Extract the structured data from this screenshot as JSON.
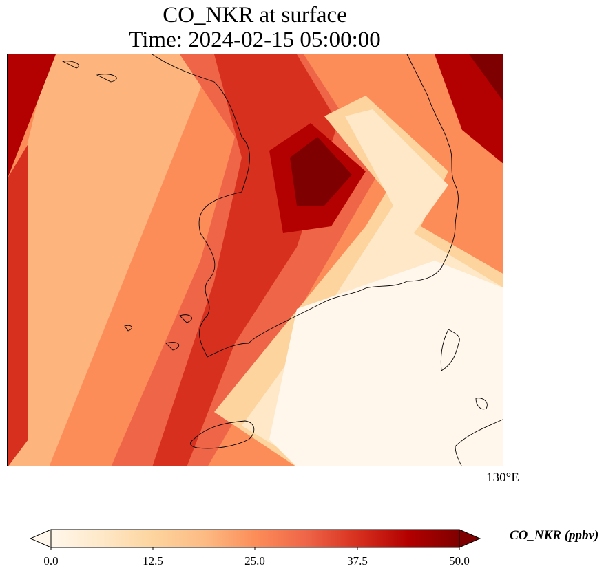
{
  "title": {
    "line1": "CO_NKR at surface",
    "line2": "Time: 2024-02-15 05:00:00"
  },
  "map": {
    "variable": "CO_NKR",
    "level": "surface",
    "colormap": "OrRd",
    "longitude_tick_label": "130°E",
    "features": [
      "coastline-korean-peninsula",
      "coastline-jeju-island",
      "coastline-japan-tsushima",
      "coastline-japan-kyushu"
    ]
  },
  "colorbar": {
    "label": "CO_NKR (ppbv)",
    "tick_labels": [
      "0.0",
      "12.5",
      "25.0",
      "37.5",
      "50.0"
    ],
    "min": 0.0,
    "max": 50.0,
    "extend": "both",
    "colors": [
      "#fff7ec",
      "#fee8c8",
      "#fdd49e",
      "#fdbb84",
      "#fc8d59",
      "#ef6548",
      "#d7301f",
      "#b30000",
      "#7f0000"
    ]
  }
}
